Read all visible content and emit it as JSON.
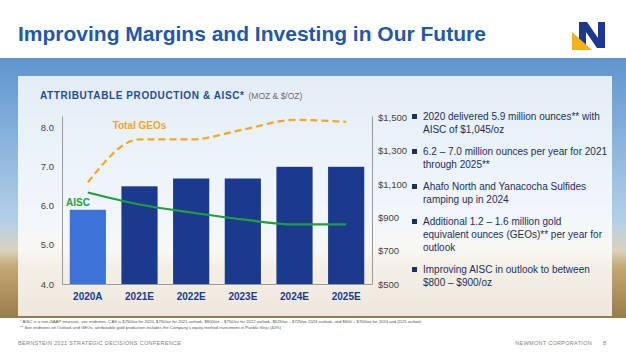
{
  "chart_data": {
    "type": "bar",
    "title": "ATTRIBUTABLE PRODUCTION & AISC*",
    "subtitle": "(MOZ & $/OZ)",
    "categories": [
      "2020A",
      "2021E",
      "2022E",
      "2023E",
      "2024E",
      "2025E"
    ],
    "series": [
      {
        "type": "bar",
        "colors": [
          "#3d72d9",
          "#1b3a8e",
          "#1b3a8e",
          "#1b3a8e",
          "#1b3a8e",
          "#1b3a8e"
        ],
        "values": [
          5.9,
          6.5,
          6.7,
          6.7,
          7.0,
          7.0
        ]
      },
      {
        "name": "Total GEOs",
        "type": "line",
        "color": "#f5a623",
        "line_style": "dashed",
        "values": [
          6.6,
          7.7,
          7.7,
          7.95,
          8.2,
          8.15
        ]
      },
      {
        "name": "AISC",
        "type": "line",
        "color": "#1fa03c",
        "line_style": "solid",
        "axis": "y2",
        "values": [
          1050,
          978,
          930,
          888,
          858,
          858
        ]
      }
    ],
    "ylim": [
      4,
      8.3
    ],
    "yticks": [
      {
        "value": 4,
        "label": "4.0"
      },
      {
        "value": 5,
        "label": "5.0"
      },
      {
        "value": 6,
        "label": "6.0"
      },
      {
        "value": 7,
        "label": "7.0"
      },
      {
        "value": 8,
        "label": "8.0"
      }
    ],
    "y2lim": [
      500,
      1510
    ],
    "y2ticks": [
      {
        "value": 500,
        "label": "$500"
      },
      {
        "value": 700,
        "label": "$700"
      },
      {
        "value": 900,
        "label": "$900"
      },
      {
        "value": 1100,
        "label": "$1,100"
      },
      {
        "value": 1300,
        "label": "$1,300"
      },
      {
        "value": 1500,
        "label": "$1,500"
      }
    ],
    "grid": false
  },
  "slide": {
    "title": "Improving Margins and Investing in Our Future",
    "bullets": [
      "2020 delivered 5.9 million ounces** with AISC of $1,045/oz",
      "6.2 – 7.0 million ounces per year for 2021 through 2025**",
      "Ahafo North and Yanacocha Sulfides ramping up in 2024",
      "Additional 1.2 – 1.6 million gold equivalent ounces (GEOs)** per year for outlook",
      "Improving AISC in outlook to between $800 – $900/oz"
    ],
    "footnotes": [
      "* AISC is a non-GAAP measure, see endnotes. CAS is $750/oz for 2020, $750/oz for 2021 outlook, $800/oz – $750/oz for 2022 outlook, $625/oz – $725/oz 2023 outlook, and $600 – $700/oz for 2024 and 2025 outlook",
      "** See endnotes on Outlook and GEOs; attributable gold production includes the Company's equity method investment in Pueblo Viejo (40%)"
    ],
    "footer_left": "BERNSTEIN 2021 STRATEGIC DECISIONS CONFERENCE",
    "footer_right": "NEWMONT CORPORATION",
    "page_number": 8
  }
}
